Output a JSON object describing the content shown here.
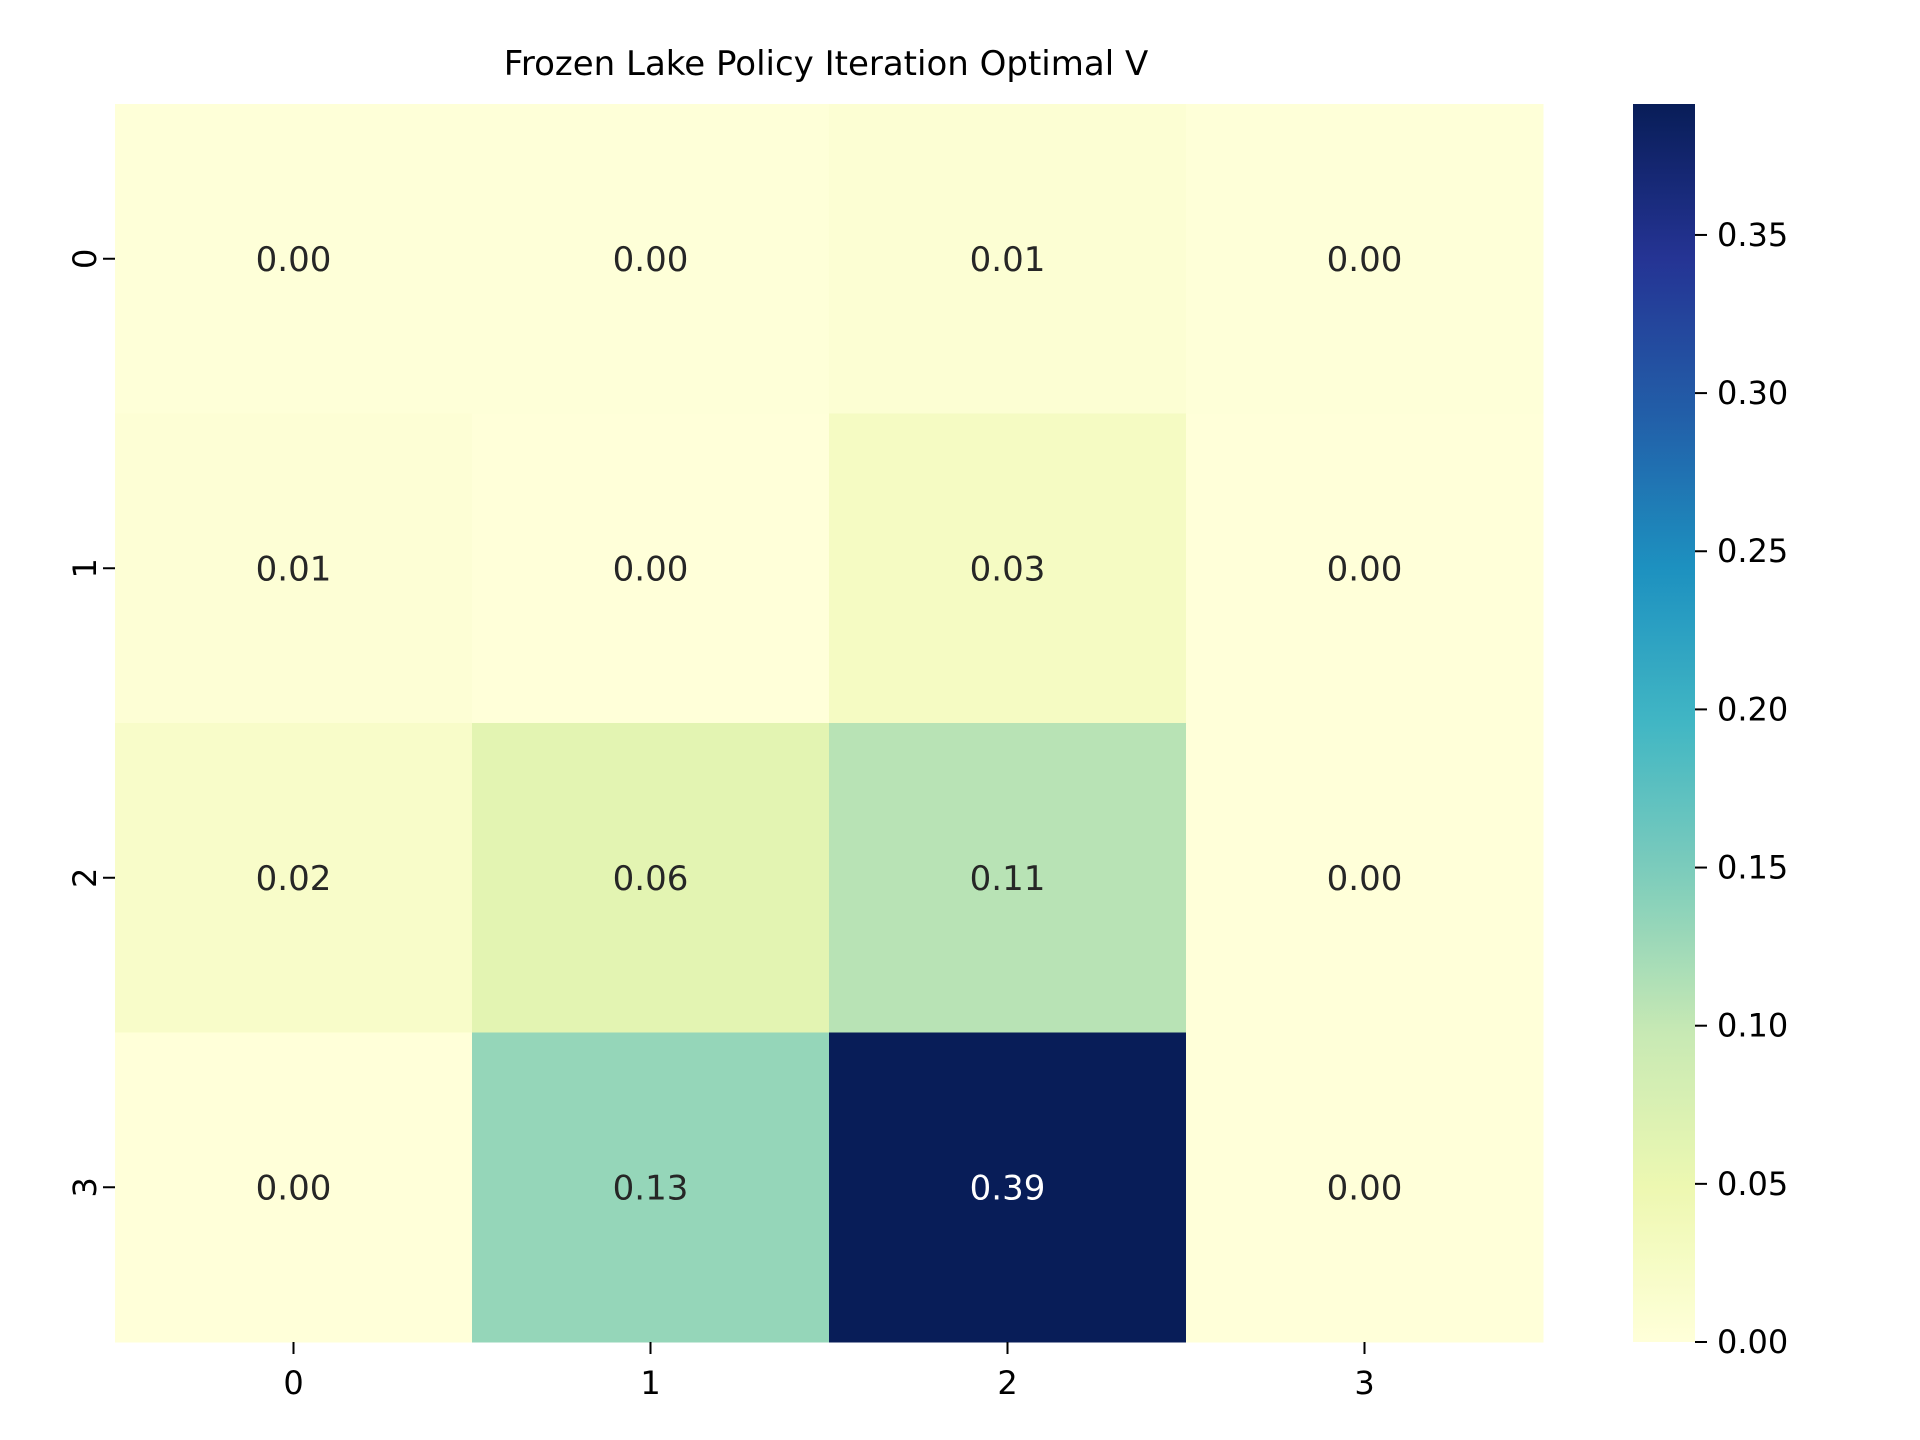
{
  "chart_data": {
    "type": "heatmap",
    "title": "Frozen Lake Policy Iteration Optimal V",
    "xlabel": "",
    "ylabel": "",
    "x_categories": [
      "0",
      "1",
      "2",
      "3"
    ],
    "y_categories": [
      "0",
      "1",
      "2",
      "3"
    ],
    "values": [
      [
        0.0015,
        0.0016,
        0.0075,
        0.0016
      ],
      [
        0.0053,
        0.0,
        0.0272,
        0.0
      ],
      [
        0.0193,
        0.0621,
        0.1081,
        0.0
      ],
      [
        0.0,
        0.1315,
        0.3914,
        0.0
      ]
    ],
    "labels": [
      [
        "0.00",
        "0.00",
        "0.01",
        "0.00"
      ],
      [
        "0.01",
        "0.00",
        "0.03",
        "0.00"
      ],
      [
        "0.02",
        "0.06",
        "0.11",
        "0.00"
      ],
      [
        "0.00",
        "0.13",
        "0.39",
        "0.00"
      ]
    ],
    "colormap": "YlGnBu",
    "vmin": 0.0,
    "vmax": 0.3914,
    "colorbar_ticks": [
      0.0,
      0.05,
      0.1,
      0.15,
      0.2,
      0.25,
      0.3,
      0.35
    ],
    "colorbar_tick_labels": [
      "0.00",
      "0.05",
      "0.10",
      "0.15",
      "0.20",
      "0.25",
      "0.30",
      "0.35"
    ],
    "colorbar_position": "right",
    "grid": false,
    "annotation_colors": {
      "dark": "#262626",
      "light": "#ffffff"
    },
    "colormap_stops": [
      "#ffffd9",
      "#edf8b1",
      "#c7e9b4",
      "#7fcdbb",
      "#41b6c4",
      "#1d91c0",
      "#225ea8",
      "#253494",
      "#081d58"
    ]
  }
}
